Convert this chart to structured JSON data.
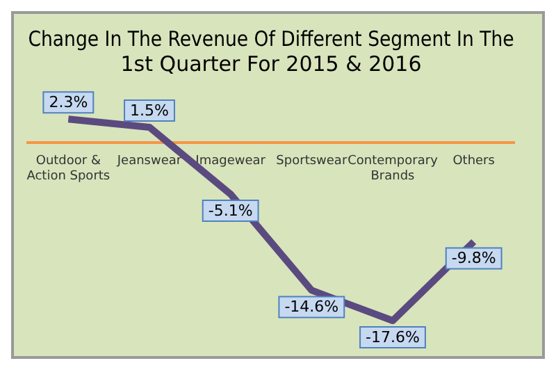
{
  "chart_data": {
    "type": "line",
    "title": "Change In The Revenue Of Different Segment In The 1st Quarter For 2015 & 2016",
    "categories": [
      "Outdoor & Action Sports",
      "Jeanswear",
      "Imagewear",
      "Sportswear",
      "Contemporary Brands",
      "Others"
    ],
    "series": [
      {
        "color": "#5b4a7f",
        "values": [
          2.3,
          1.5,
          -5.1,
          -14.6,
          -17.6,
          -9.8
        ],
        "value_labels": [
          "2.3%",
          "1.5%",
          "-5.1%",
          "-14.6%",
          "-17.6%",
          "-9.8%"
        ]
      }
    ],
    "line_style": "solid",
    "legend": false,
    "grid": false
  }
}
